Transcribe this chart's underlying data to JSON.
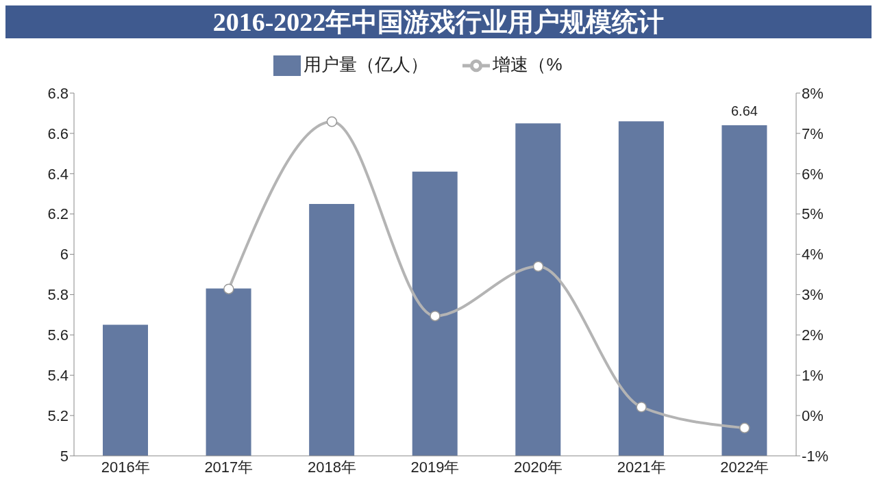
{
  "chart_data": {
    "type": "bar",
    "title": "2016-2022年中国游戏行业用户规模统计",
    "categories": [
      "2016年",
      "2017年",
      "2018年",
      "2019年",
      "2020年",
      "2021年",
      "2022年"
    ],
    "series": [
      {
        "name": "用户量（亿人）",
        "color": "#6379a1",
        "values": [
          5.65,
          5.83,
          6.25,
          6.41,
          6.65,
          6.66,
          6.64
        ],
        "value_labels": [
          null,
          null,
          null,
          null,
          null,
          null,
          "6.64"
        ]
      },
      {
        "name": "增速（%",
        "type": "line",
        "axis": "y2",
        "color": "#b4b4b4",
        "marker": "circle",
        "values": [
          null,
          3.14,
          7.29,
          2.47,
          3.7,
          0.21,
          -0.31
        ]
      }
    ],
    "ylim": [
      5,
      6.8
    ],
    "yticks": [
      5,
      5.2,
      5.4,
      5.6,
      5.8,
      6,
      6.2,
      6.4,
      6.6,
      6.8
    ],
    "y2lim": [
      -1,
      8
    ],
    "y2ticks": [
      {
        "value": -1,
        "label": "-1%"
      },
      {
        "value": 0,
        "label": "0%"
      },
      {
        "value": 1,
        "label": "1%"
      },
      {
        "value": 2,
        "label": "2%"
      },
      {
        "value": 3,
        "label": "3%"
      },
      {
        "value": 4,
        "label": "4%"
      },
      {
        "value": 5,
        "label": "5%"
      },
      {
        "value": 6,
        "label": "6%"
      },
      {
        "value": 7,
        "label": "7%"
      },
      {
        "value": 8,
        "label": "8%"
      }
    ],
    "grid": false,
    "legend": "top"
  }
}
